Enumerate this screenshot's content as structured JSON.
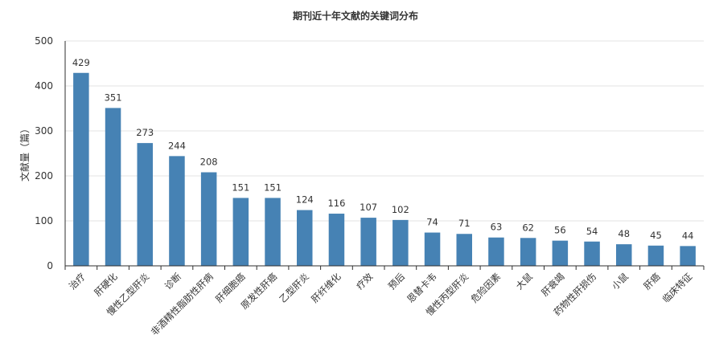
{
  "chart_data": {
    "type": "bar",
    "title": "期刊近十年文献的关键词分布",
    "xlabel": "",
    "ylabel": "文献量（篇）",
    "ylim": [
      0,
      500
    ],
    "yticks": [
      0,
      100,
      200,
      300,
      400,
      500
    ],
    "grid": true,
    "bar_color": "#4682B4",
    "categories": [
      "治疗",
      "肝硬化",
      "慢性乙型肝炎",
      "诊断",
      "非酒精性脂肪性肝病",
      "肝细胞癌",
      "原发性肝癌",
      "乙型肝炎",
      "肝纤维化",
      "疗效",
      "预后",
      "恩替卡韦",
      "慢性丙型肝炎",
      "危险因素",
      "大鼠",
      "肝衰竭",
      "药物性肝损伤",
      "小鼠",
      "肝癌",
      "临床特征"
    ],
    "values": [
      429,
      351,
      273,
      244,
      208,
      151,
      151,
      124,
      116,
      107,
      102,
      74,
      71,
      63,
      62,
      56,
      54,
      48,
      45,
      44
    ]
  }
}
